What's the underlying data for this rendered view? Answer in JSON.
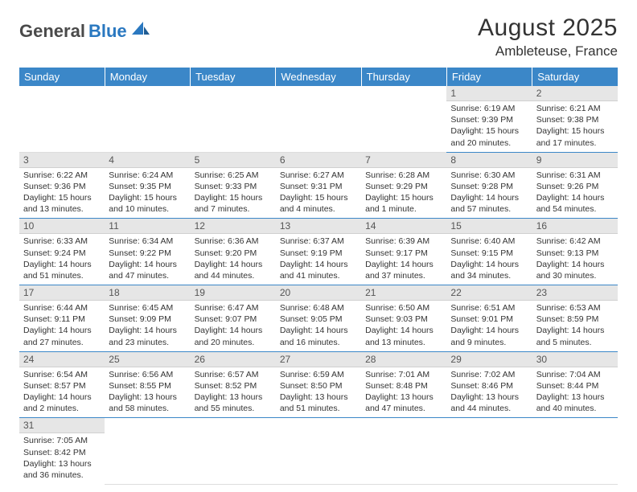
{
  "logo": {
    "part1": "General",
    "part2": "Blue"
  },
  "title": "August 2025",
  "location": "Ambleteuse, France",
  "colors": {
    "header_bg": "#3b87c8",
    "header_text": "#ffffff",
    "daynum_bg": "#e6e6e6",
    "row_divider": "#3b87c8",
    "logo_dark": "#4a4a4a",
    "logo_blue": "#2a78c0"
  },
  "weekdays": [
    "Sunday",
    "Monday",
    "Tuesday",
    "Wednesday",
    "Thursday",
    "Friday",
    "Saturday"
  ],
  "weeks": [
    [
      null,
      null,
      null,
      null,
      null,
      {
        "n": "1",
        "sunrise": "Sunrise: 6:19 AM",
        "sunset": "Sunset: 9:39 PM",
        "daylight": "Daylight: 15 hours and 20 minutes."
      },
      {
        "n": "2",
        "sunrise": "Sunrise: 6:21 AM",
        "sunset": "Sunset: 9:38 PM",
        "daylight": "Daylight: 15 hours and 17 minutes."
      }
    ],
    [
      {
        "n": "3",
        "sunrise": "Sunrise: 6:22 AM",
        "sunset": "Sunset: 9:36 PM",
        "daylight": "Daylight: 15 hours and 13 minutes."
      },
      {
        "n": "4",
        "sunrise": "Sunrise: 6:24 AM",
        "sunset": "Sunset: 9:35 PM",
        "daylight": "Daylight: 15 hours and 10 minutes."
      },
      {
        "n": "5",
        "sunrise": "Sunrise: 6:25 AM",
        "sunset": "Sunset: 9:33 PM",
        "daylight": "Daylight: 15 hours and 7 minutes."
      },
      {
        "n": "6",
        "sunrise": "Sunrise: 6:27 AM",
        "sunset": "Sunset: 9:31 PM",
        "daylight": "Daylight: 15 hours and 4 minutes."
      },
      {
        "n": "7",
        "sunrise": "Sunrise: 6:28 AM",
        "sunset": "Sunset: 9:29 PM",
        "daylight": "Daylight: 15 hours and 1 minute."
      },
      {
        "n": "8",
        "sunrise": "Sunrise: 6:30 AM",
        "sunset": "Sunset: 9:28 PM",
        "daylight": "Daylight: 14 hours and 57 minutes."
      },
      {
        "n": "9",
        "sunrise": "Sunrise: 6:31 AM",
        "sunset": "Sunset: 9:26 PM",
        "daylight": "Daylight: 14 hours and 54 minutes."
      }
    ],
    [
      {
        "n": "10",
        "sunrise": "Sunrise: 6:33 AM",
        "sunset": "Sunset: 9:24 PM",
        "daylight": "Daylight: 14 hours and 51 minutes."
      },
      {
        "n": "11",
        "sunrise": "Sunrise: 6:34 AM",
        "sunset": "Sunset: 9:22 PM",
        "daylight": "Daylight: 14 hours and 47 minutes."
      },
      {
        "n": "12",
        "sunrise": "Sunrise: 6:36 AM",
        "sunset": "Sunset: 9:20 PM",
        "daylight": "Daylight: 14 hours and 44 minutes."
      },
      {
        "n": "13",
        "sunrise": "Sunrise: 6:37 AM",
        "sunset": "Sunset: 9:19 PM",
        "daylight": "Daylight: 14 hours and 41 minutes."
      },
      {
        "n": "14",
        "sunrise": "Sunrise: 6:39 AM",
        "sunset": "Sunset: 9:17 PM",
        "daylight": "Daylight: 14 hours and 37 minutes."
      },
      {
        "n": "15",
        "sunrise": "Sunrise: 6:40 AM",
        "sunset": "Sunset: 9:15 PM",
        "daylight": "Daylight: 14 hours and 34 minutes."
      },
      {
        "n": "16",
        "sunrise": "Sunrise: 6:42 AM",
        "sunset": "Sunset: 9:13 PM",
        "daylight": "Daylight: 14 hours and 30 minutes."
      }
    ],
    [
      {
        "n": "17",
        "sunrise": "Sunrise: 6:44 AM",
        "sunset": "Sunset: 9:11 PM",
        "daylight": "Daylight: 14 hours and 27 minutes."
      },
      {
        "n": "18",
        "sunrise": "Sunrise: 6:45 AM",
        "sunset": "Sunset: 9:09 PM",
        "daylight": "Daylight: 14 hours and 23 minutes."
      },
      {
        "n": "19",
        "sunrise": "Sunrise: 6:47 AM",
        "sunset": "Sunset: 9:07 PM",
        "daylight": "Daylight: 14 hours and 20 minutes."
      },
      {
        "n": "20",
        "sunrise": "Sunrise: 6:48 AM",
        "sunset": "Sunset: 9:05 PM",
        "daylight": "Daylight: 14 hours and 16 minutes."
      },
      {
        "n": "21",
        "sunrise": "Sunrise: 6:50 AM",
        "sunset": "Sunset: 9:03 PM",
        "daylight": "Daylight: 14 hours and 13 minutes."
      },
      {
        "n": "22",
        "sunrise": "Sunrise: 6:51 AM",
        "sunset": "Sunset: 9:01 PM",
        "daylight": "Daylight: 14 hours and 9 minutes."
      },
      {
        "n": "23",
        "sunrise": "Sunrise: 6:53 AM",
        "sunset": "Sunset: 8:59 PM",
        "daylight": "Daylight: 14 hours and 5 minutes."
      }
    ],
    [
      {
        "n": "24",
        "sunrise": "Sunrise: 6:54 AM",
        "sunset": "Sunset: 8:57 PM",
        "daylight": "Daylight: 14 hours and 2 minutes."
      },
      {
        "n": "25",
        "sunrise": "Sunrise: 6:56 AM",
        "sunset": "Sunset: 8:55 PM",
        "daylight": "Daylight: 13 hours and 58 minutes."
      },
      {
        "n": "26",
        "sunrise": "Sunrise: 6:57 AM",
        "sunset": "Sunset: 8:52 PM",
        "daylight": "Daylight: 13 hours and 55 minutes."
      },
      {
        "n": "27",
        "sunrise": "Sunrise: 6:59 AM",
        "sunset": "Sunset: 8:50 PM",
        "daylight": "Daylight: 13 hours and 51 minutes."
      },
      {
        "n": "28",
        "sunrise": "Sunrise: 7:01 AM",
        "sunset": "Sunset: 8:48 PM",
        "daylight": "Daylight: 13 hours and 47 minutes."
      },
      {
        "n": "29",
        "sunrise": "Sunrise: 7:02 AM",
        "sunset": "Sunset: 8:46 PM",
        "daylight": "Daylight: 13 hours and 44 minutes."
      },
      {
        "n": "30",
        "sunrise": "Sunrise: 7:04 AM",
        "sunset": "Sunset: 8:44 PM",
        "daylight": "Daylight: 13 hours and 40 minutes."
      }
    ],
    [
      {
        "n": "31",
        "sunrise": "Sunrise: 7:05 AM",
        "sunset": "Sunset: 8:42 PM",
        "daylight": "Daylight: 13 hours and 36 minutes."
      },
      null,
      null,
      null,
      null,
      null,
      null
    ]
  ]
}
